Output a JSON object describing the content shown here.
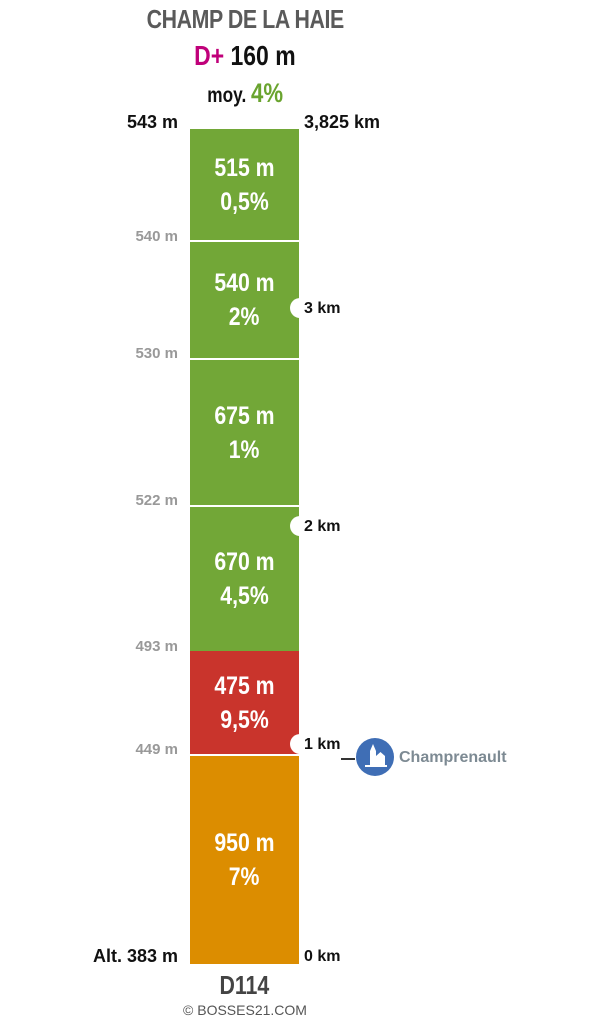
{
  "header": {
    "title": "CHAMP DE LA HAIE",
    "elevation_gain_label": "D+",
    "elevation_gain_value": "160 m",
    "average_label": "moy.",
    "average_value": "4%"
  },
  "top": {
    "altitude": "543 m",
    "distance": "3,825 km"
  },
  "segments": [
    {
      "length": "515 m",
      "grade": "0,5%",
      "color": "#72a737"
    },
    {
      "length": "540 m",
      "grade": "2%",
      "color": "#72a737"
    },
    {
      "length": "675 m",
      "grade": "1%",
      "color": "#72a737"
    },
    {
      "length": "670 m",
      "grade": "4,5%",
      "color": "#72a737"
    },
    {
      "length": "475 m",
      "grade": "9,5%",
      "color": "#c9342c"
    },
    {
      "length": "950 m",
      "grade": "7%",
      "color": "#dc8d00"
    }
  ],
  "altitudes": [
    "540 m",
    "530 m",
    "522 m",
    "493 m",
    "449 m"
  ],
  "km_markers": [
    "3 km",
    "2 km",
    "1 km"
  ],
  "bottom": {
    "altitude": "Alt. 383 m",
    "distance": "0 km",
    "road": "D114"
  },
  "poi": {
    "name": "Champrenault",
    "icon": "church-icon"
  },
  "copyright": "© BOSSES21.COM"
}
